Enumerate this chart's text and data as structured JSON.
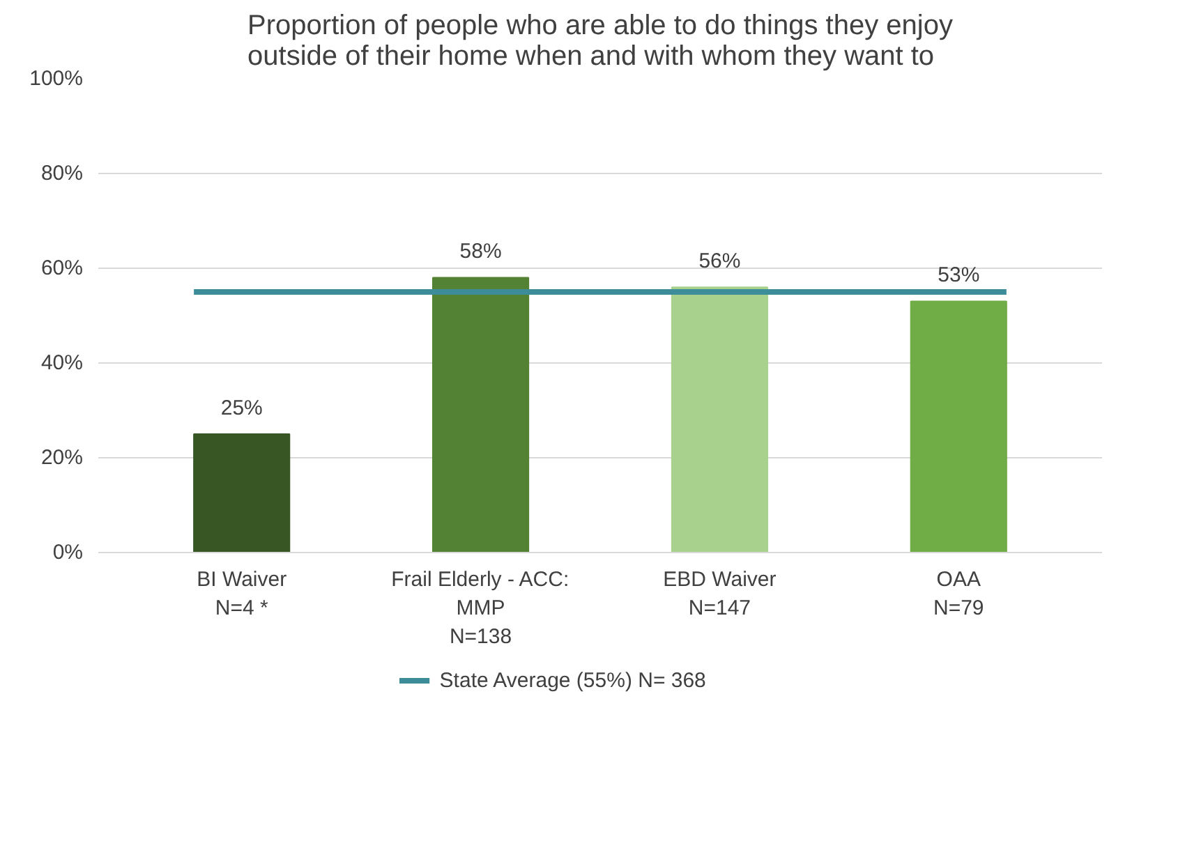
{
  "chart_data": {
    "type": "bar",
    "title": "Proportion of people who are able to do things they enjoy outside of their home when and with whom they want to",
    "categories": [
      "BI Waiver\nN=4 *",
      "Frail Elderly - ACC:\nMMP\nN=138",
      "EBD Waiver\nN=147",
      "OAA\nN=79"
    ],
    "values": [
      25,
      58,
      56,
      53
    ],
    "colors": [
      "#375623",
      "#548235",
      "#a9d18e",
      "#70ad47"
    ],
    "value_labels": [
      "25%",
      "58%",
      "56%",
      "53%"
    ],
    "legend": "bottom",
    "ylim": [
      0,
      100
    ],
    "yticks": [
      {
        "value": 0,
        "label": "0%"
      },
      {
        "value": 20,
        "label": "20%"
      },
      {
        "value": 40,
        "label": "40%"
      },
      {
        "value": 60,
        "label": "60%"
      },
      {
        "value": 80,
        "label": "80%"
      },
      {
        "value": 100,
        "label": "100%"
      }
    ],
    "grid": "y",
    "ref_lines": [
      {
        "axis": "y",
        "value": 55,
        "label": "State Average (55%) N= 368",
        "color": "#3c8d99"
      }
    ]
  }
}
